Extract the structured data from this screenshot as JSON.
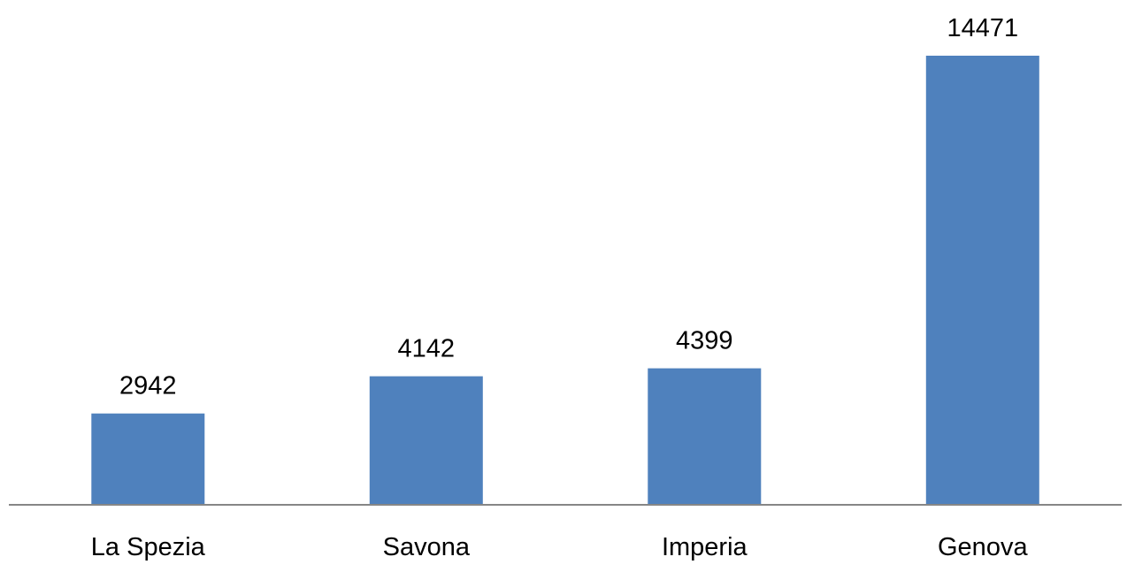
{
  "chart_data": {
    "type": "bar",
    "categories": [
      "La Spezia",
      "Savona",
      "Imperia",
      "Genova"
    ],
    "values": [
      2942,
      4142,
      4399,
      14471
    ],
    "title": "",
    "xlabel": "",
    "ylabel": "",
    "ylim": [
      0,
      14471
    ],
    "grid": false,
    "legend": "none",
    "data_labels": true,
    "colors": {
      "bar": "#4f81bd",
      "axis": "#868686"
    }
  }
}
